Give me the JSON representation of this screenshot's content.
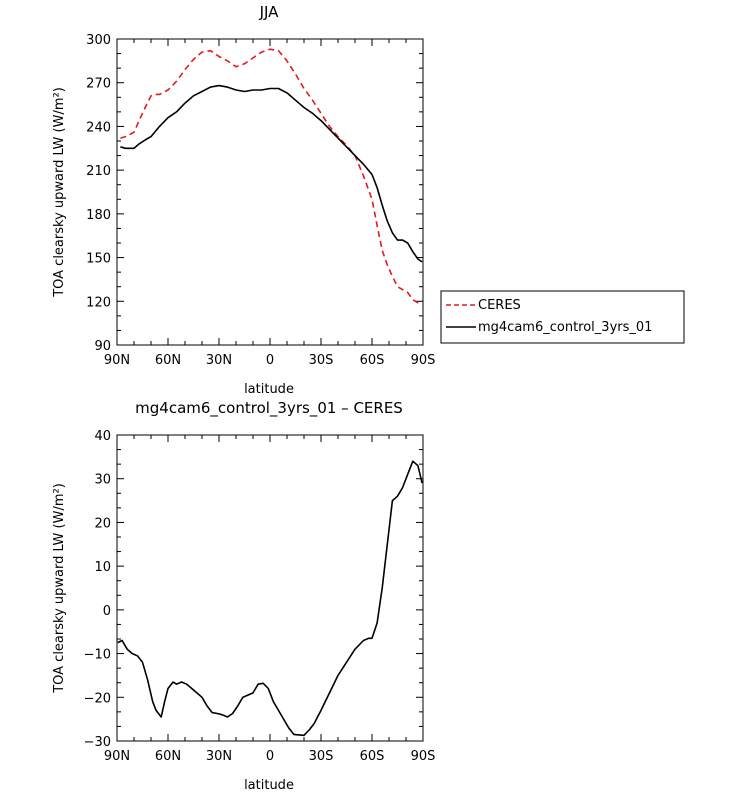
{
  "chart_data": [
    {
      "type": "line",
      "title": "JJA",
      "xlabel": "latitude",
      "ylabel": "TOA clearsky upward LW (W/m²)",
      "xlim": [
        90,
        -90
      ],
      "ylim": [
        90,
        300
      ],
      "x_ticks": [
        90,
        60,
        30,
        0,
        -30,
        -60,
        -90
      ],
      "x_tick_labels": [
        "90N",
        "60N",
        "30N",
        "0",
        "30S",
        "60S",
        "90S"
      ],
      "y_ticks": [
        90,
        120,
        150,
        180,
        210,
        240,
        270,
        300
      ],
      "y_tick_labels": [
        "90",
        "120",
        "150",
        "180",
        "210",
        "240",
        "270",
        "300"
      ],
      "legend": "outside-right",
      "grid": false,
      "series": [
        {
          "name": "CERES",
          "color": "#e41a1c",
          "style": "dashed",
          "x": [
            88,
            85,
            80,
            77,
            73,
            70,
            67,
            65,
            60,
            55,
            50,
            45,
            40,
            35,
            30,
            25,
            20,
            15,
            10,
            5,
            0,
            -5,
            -10,
            -15,
            -20,
            -25,
            -30,
            -35,
            -40,
            -45,
            -50,
            -55,
            -60,
            -63,
            -66,
            -69,
            -72,
            -75,
            -78,
            -81,
            -84,
            -87,
            -89.5
          ],
          "y": [
            232,
            233,
            236,
            244,
            254,
            261,
            262,
            262,
            265,
            271,
            279,
            286,
            291,
            292,
            288,
            285,
            281,
            283,
            287,
            291,
            293,
            292,
            285,
            276,
            266,
            258,
            249,
            240,
            233,
            227,
            220,
            206,
            190,
            172,
            155,
            145,
            137,
            130,
            128,
            126,
            121,
            119,
            118
          ]
        },
        {
          "name": "mg4cam6_control_3yrs_01",
          "color": "#000000",
          "style": "solid",
          "x": [
            88,
            85,
            80,
            77,
            73,
            70,
            65,
            60,
            55,
            50,
            45,
            40,
            35,
            30,
            25,
            20,
            15,
            10,
            5,
            0,
            -5,
            -10,
            -15,
            -20,
            -25,
            -30,
            -35,
            -40,
            -45,
            -50,
            -55,
            -60,
            -63,
            -66,
            -69,
            -72,
            -75,
            -78,
            -81,
            -84,
            -87,
            -89.5
          ],
          "y": [
            226,
            225,
            225,
            228,
            231,
            233,
            240,
            246,
            250,
            256,
            261,
            264,
            267,
            268,
            267,
            265,
            264,
            265,
            265,
            266,
            266,
            263,
            258,
            253,
            249,
            244,
            238,
            232,
            226,
            220,
            214,
            207,
            198,
            186,
            175,
            167,
            162,
            162,
            160,
            154,
            149,
            147
          ]
        }
      ]
    },
    {
      "type": "line",
      "title": "mg4cam6_control_3yrs_01 – CERES",
      "xlabel": "latitude",
      "ylabel": "TOA clearsky upward LW (W/m²)",
      "xlim": [
        90,
        -90
      ],
      "ylim": [
        -30,
        40
      ],
      "x_ticks": [
        90,
        60,
        30,
        0,
        -30,
        -60,
        -90
      ],
      "x_tick_labels": [
        "90N",
        "60N",
        "30N",
        "0",
        "30S",
        "60S",
        "90S"
      ],
      "y_ticks": [
        -30,
        -20,
        -10,
        0,
        10,
        20,
        30,
        40
      ],
      "y_tick_labels": [
        "−30",
        "−20",
        "−10",
        "0",
        "10",
        "20",
        "30",
        "40"
      ],
      "grid": false,
      "series": [
        {
          "color": "#000000",
          "style": "solid",
          "x": [
            89.5,
            87,
            84,
            81,
            78,
            75,
            72,
            69,
            67,
            64,
            62,
            60,
            57,
            55,
            52,
            49,
            46,
            43,
            40,
            37,
            34,
            31,
            28,
            25,
            22,
            19,
            16,
            13,
            10,
            7,
            4,
            1,
            -2,
            -5,
            -8,
            -11,
            -14,
            -17,
            -20,
            -23,
            -26,
            -30,
            -35,
            -40,
            -45,
            -50,
            -55,
            -58,
            -60,
            -63,
            -66,
            -69,
            -72,
            -75,
            -78,
            -81,
            -84,
            -87,
            -89.5
          ],
          "y": [
            -7.5,
            -7,
            -9,
            -10,
            -10.5,
            -12,
            -16,
            -21,
            -23,
            -24.5,
            -21,
            -18,
            -16.5,
            -17,
            -16.5,
            -17,
            -18,
            -19,
            -20,
            -22,
            -23.5,
            -23.7,
            -24,
            -24.5,
            -23.7,
            -22,
            -20,
            -19.5,
            -19,
            -17,
            -16.8,
            -18,
            -21,
            -23,
            -25,
            -27,
            -28.5,
            -28.6,
            -28.7,
            -27.5,
            -26,
            -23,
            -19,
            -15,
            -12,
            -9,
            -7,
            -6.5,
            -6.5,
            -3,
            5,
            15,
            25,
            26,
            28,
            31,
            34,
            33,
            29
          ]
        }
      ]
    }
  ]
}
